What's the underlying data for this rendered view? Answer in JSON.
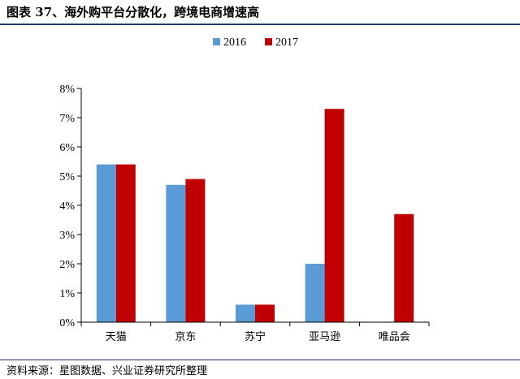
{
  "header": {
    "title": "图表 37、海外购平台分散化，跨境电商增速高"
  },
  "footer": {
    "source": "资料来源：星图数据、兴业证券研究所整理"
  },
  "colors": {
    "rule": "#1f3864"
  },
  "chart_data": {
    "type": "bar",
    "categories": [
      "天猫",
      "京东",
      "苏宁",
      "亚马逊",
      "唯品会"
    ],
    "series": [
      {
        "name": "2016",
        "color": "#5b9bd5",
        "values": [
          5.4,
          4.7,
          0.6,
          2.0,
          null
        ]
      },
      {
        "name": "2017",
        "color": "#c00000",
        "values": [
          5.4,
          4.9,
          0.6,
          7.3,
          3.7
        ]
      }
    ],
    "ylim": [
      0,
      8
    ],
    "yticks": [
      "0%",
      "1%",
      "2%",
      "3%",
      "4%",
      "5%",
      "6%",
      "7%",
      "8%"
    ],
    "legend": "top-center",
    "grid": false
  }
}
